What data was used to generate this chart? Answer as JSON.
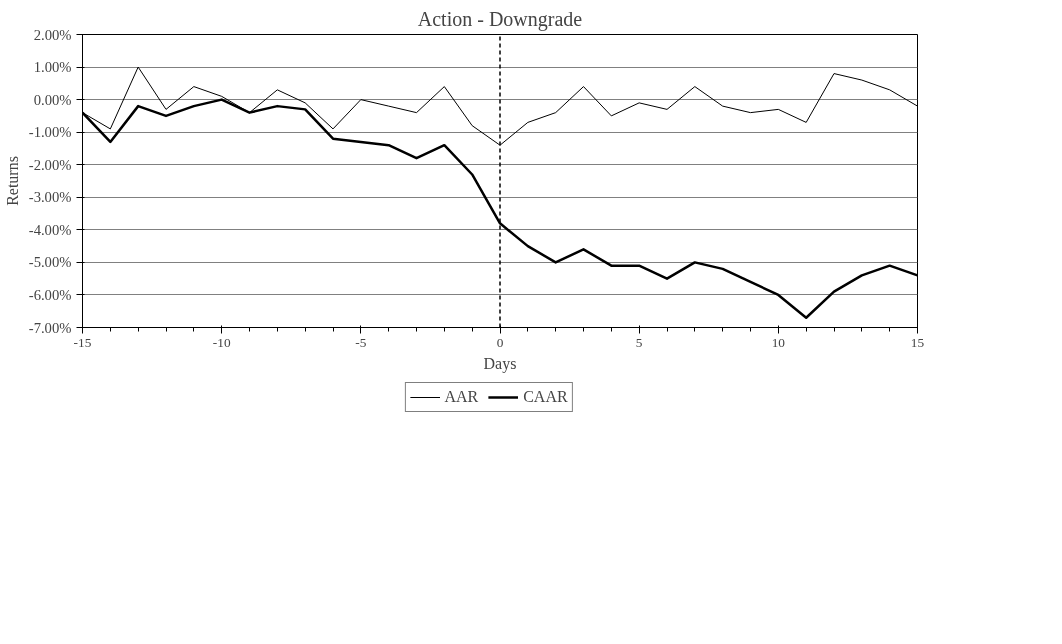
{
  "chart_data": {
    "type": "line",
    "title": "Action - Downgrade",
    "xlabel": "Days",
    "ylabel": "Returns",
    "x": [
      -15,
      -14,
      -13,
      -12,
      -11,
      -10,
      -9,
      -8,
      -7,
      -6,
      -5,
      -4,
      -3,
      -2,
      -1,
      0,
      1,
      2,
      3,
      4,
      5,
      6,
      7,
      8,
      9,
      10,
      11,
      12,
      13,
      14,
      15
    ],
    "series": [
      {
        "name": "AAR",
        "color": "#000000",
        "values": [
          -0.4,
          -0.9,
          1.0,
          -0.3,
          0.4,
          0.1,
          -0.4,
          0.3,
          -0.1,
          -0.9,
          0.0,
          -0.2,
          -0.4,
          0.4,
          -0.8,
          -1.4,
          -0.7,
          -0.4,
          0.4,
          -0.5,
          -0.1,
          -0.3,
          0.4,
          -0.2,
          -0.4,
          -0.3,
          -0.7,
          0.8,
          0.6,
          0.3,
          -0.2
        ]
      },
      {
        "name": "CAAR",
        "color": "#000000",
        "values": [
          -0.4,
          -1.3,
          -0.2,
          -0.5,
          -0.2,
          0.0,
          -0.4,
          -0.2,
          -0.3,
          -1.2,
          -1.3,
          -1.4,
          -1.8,
          -1.4,
          -2.3,
          -3.8,
          -4.5,
          -5.0,
          -4.6,
          -5.1,
          -5.1,
          -5.5,
          -5.0,
          -5.2,
          -5.6,
          -6.0,
          -6.7,
          -5.9,
          -5.4,
          -5.1,
          -5.4
        ]
      }
    ],
    "xlim": [
      -15,
      15
    ],
    "xticks": [
      -15,
      -10,
      -5,
      0,
      5,
      10,
      15
    ],
    "ylim": [
      -7,
      2
    ],
    "yticks": [
      {
        "value": 2,
        "label": "2.00%"
      },
      {
        "value": 1,
        "label": "1.00%"
      },
      {
        "value": 0,
        "label": "0.00%"
      },
      {
        "value": -1,
        "label": "-1.00%"
      },
      {
        "value": -2,
        "label": "-2.00%"
      },
      {
        "value": -3,
        "label": "-3.00%"
      },
      {
        "value": -4,
        "label": "-4.00%"
      },
      {
        "value": -5,
        "label": "-5.00%"
      },
      {
        "value": -6,
        "label": "-6.00%"
      },
      {
        "value": -7,
        "label": "-7.00%"
      }
    ],
    "ref_lines": [
      {
        "axis": "x",
        "value": 0,
        "line_style": "dashed",
        "color": "#000000"
      }
    ],
    "grid": "y",
    "legend": "bottom",
    "marker": "none",
    "line_style": "solid"
  }
}
